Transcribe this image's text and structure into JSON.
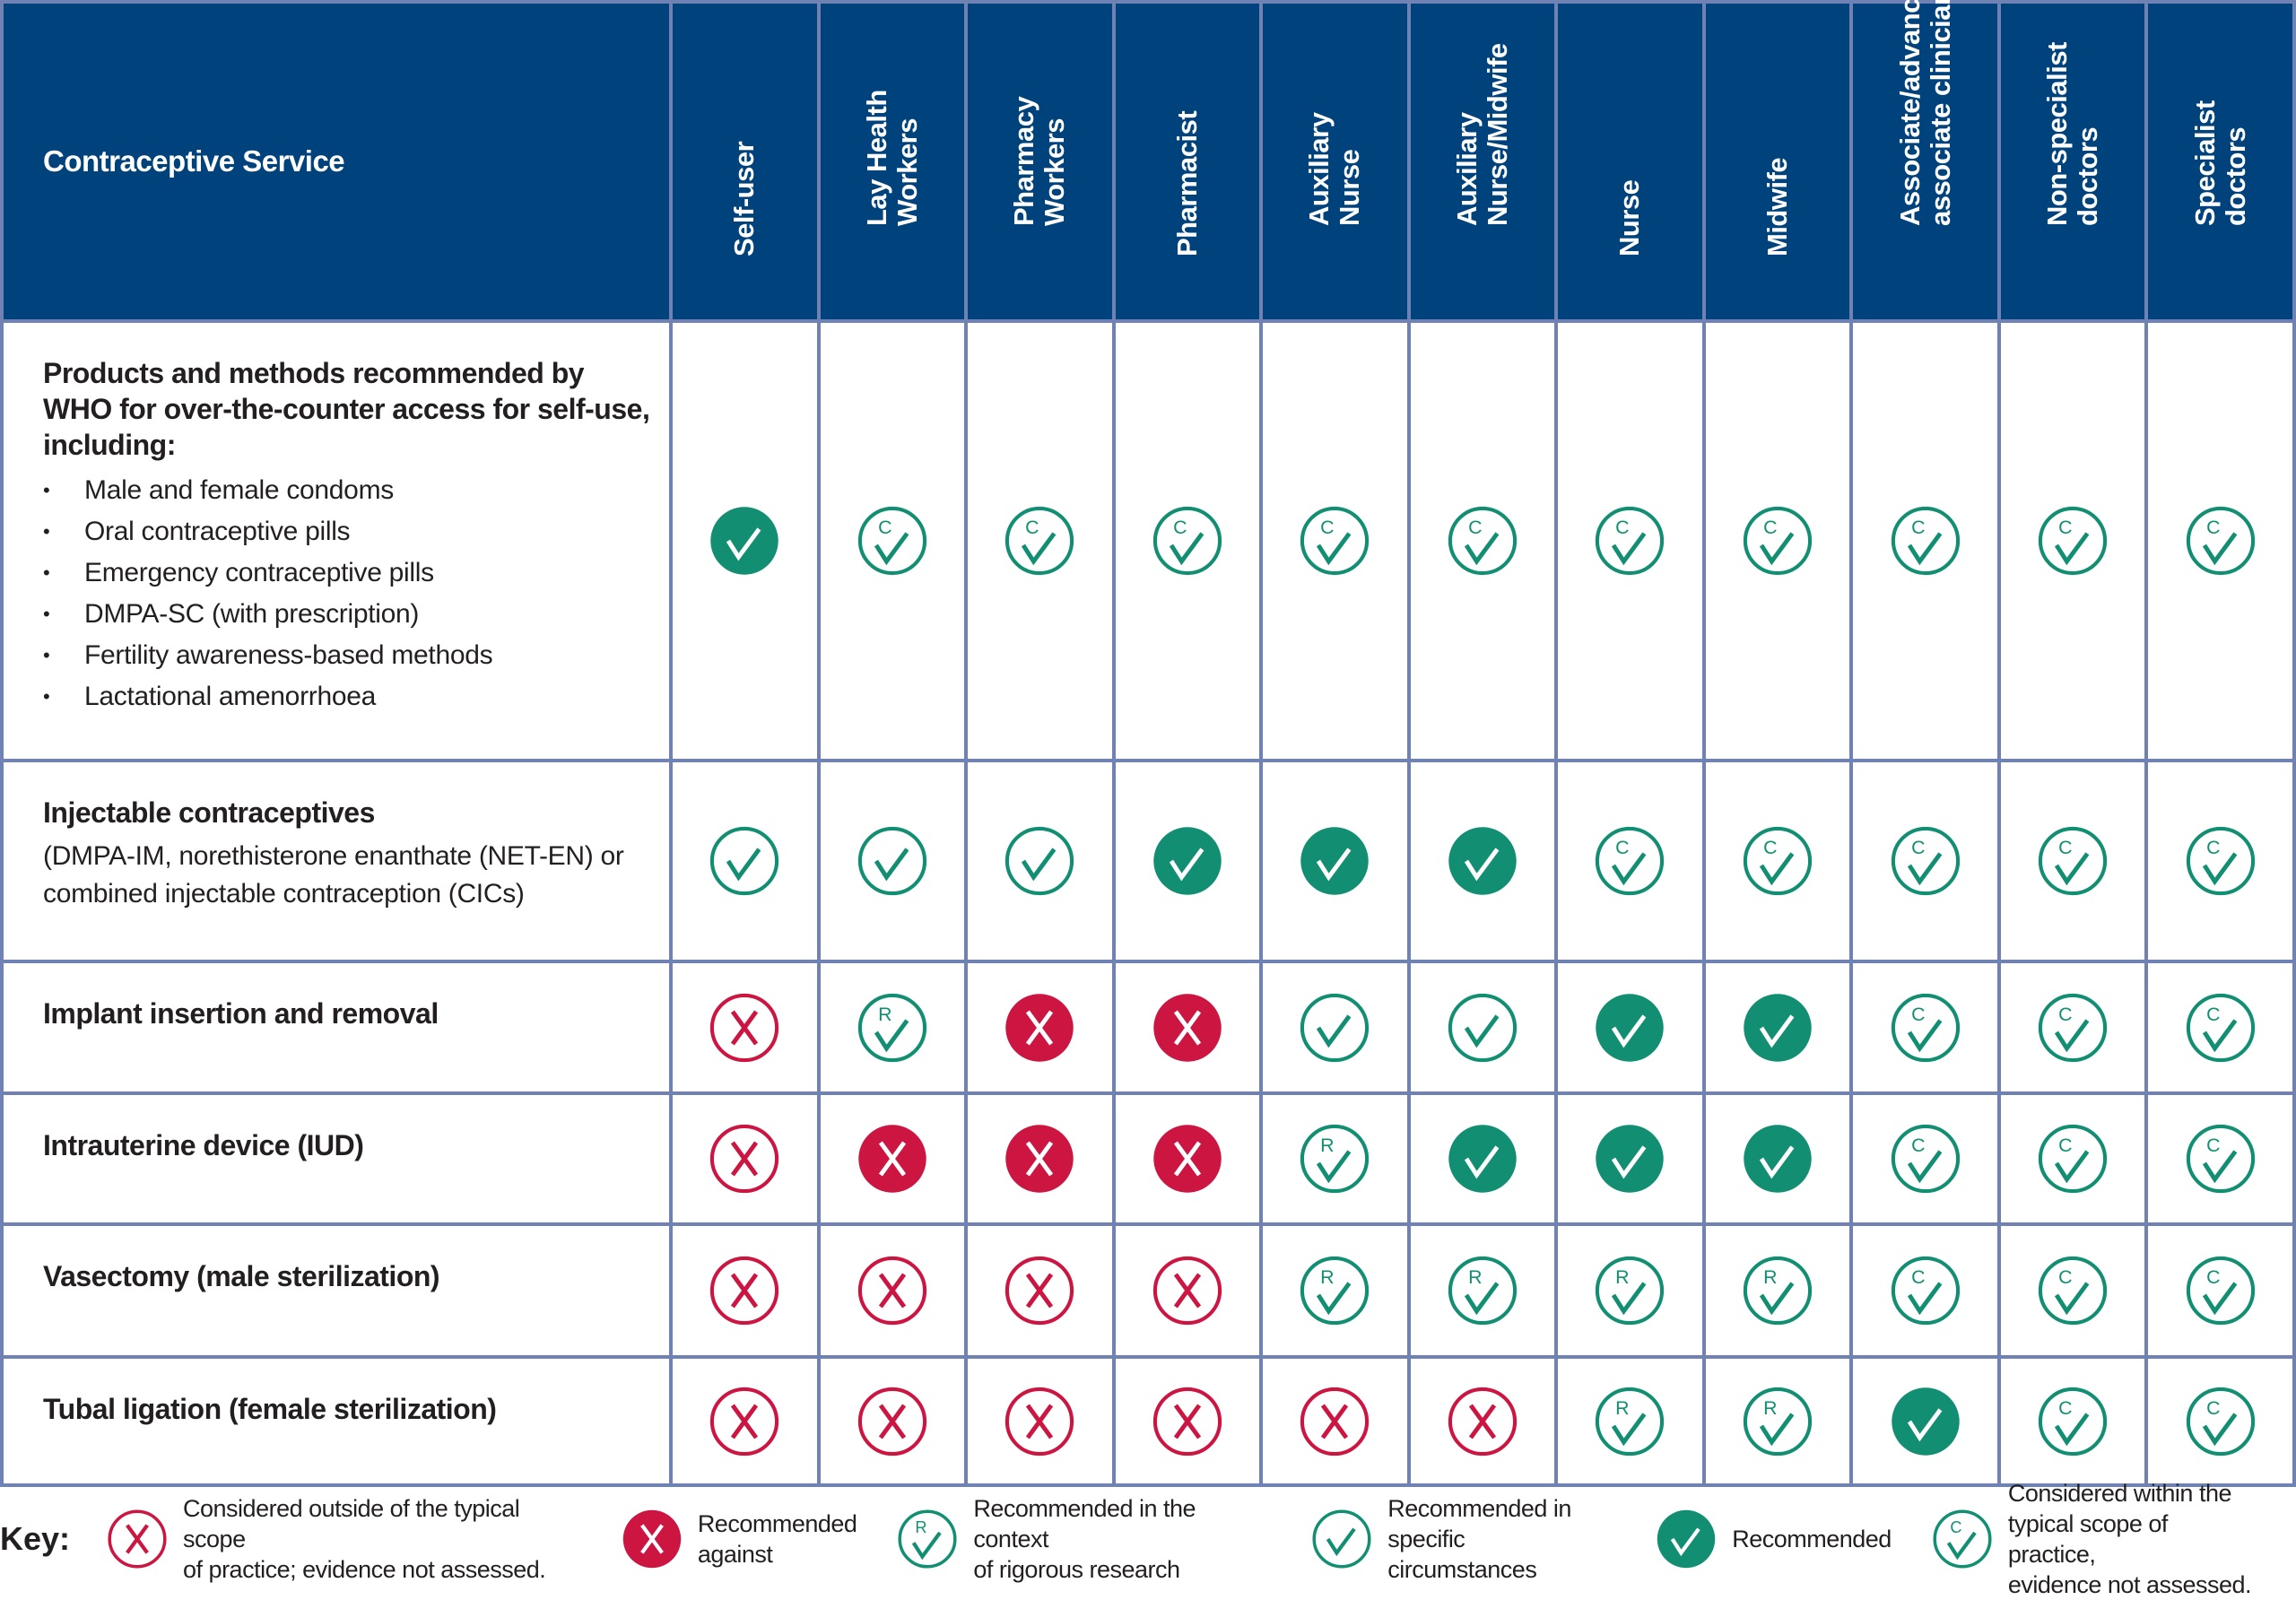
{
  "colors": {
    "header": "#00427c",
    "grid": "#6f82b3",
    "green": "#128f72",
    "red": "#cc1540"
  },
  "header": {
    "service": "Contraceptive Service",
    "columns": [
      [
        "Self-user"
      ],
      [
        "Lay Health",
        "Workers"
      ],
      [
        "Pharmacy",
        "Workers"
      ],
      [
        "Pharmacist"
      ],
      [
        "Auxiliary",
        "Nurse"
      ],
      [
        "Auxiliary",
        "Nurse/Midwife"
      ],
      [
        "Nurse"
      ],
      [
        "Midwife"
      ],
      [
        "Associate/advanced",
        "associate clinicians"
      ],
      [
        "Non-specialist",
        "doctors"
      ],
      [
        "Specialist",
        "doctors"
      ]
    ]
  },
  "rows": [
    {
      "title": "Products and methods recommended by WHO for over-the-counter access for self-use, including:",
      "desc": "",
      "bullets": [
        "Male and female condoms",
        "Oral contraceptive pills",
        "Emergency contraceptive pills",
        "DMPA-SC (with prescription)",
        "Fertility awareness-based methods",
        "Lactational amenorrhoea"
      ],
      "cells": [
        "recommended",
        "within-scope",
        "within-scope",
        "within-scope",
        "within-scope",
        "within-scope",
        "within-scope",
        "within-scope",
        "within-scope",
        "within-scope",
        "within-scope"
      ]
    },
    {
      "title": "Injectable contraceptives",
      "desc": "(DMPA-IM, norethisterone enanthate (NET-EN) or combined injectable contraception (CICs)",
      "bullets": [],
      "cells": [
        "specific-circumstances",
        "specific-circumstances",
        "specific-circumstances",
        "recommended",
        "recommended",
        "recommended",
        "within-scope",
        "within-scope",
        "within-scope",
        "within-scope",
        "within-scope"
      ]
    },
    {
      "title": "Implant insertion and removal",
      "desc": "",
      "bullets": [],
      "cells": [
        "outside-scope",
        "rigorous-research",
        "recommended-against",
        "recommended-against",
        "specific-circumstances",
        "specific-circumstances",
        "recommended",
        "recommended",
        "within-scope",
        "within-scope",
        "within-scope"
      ]
    },
    {
      "title": "Intrauterine device (IUD)",
      "desc": "",
      "bullets": [],
      "cells": [
        "outside-scope",
        "recommended-against",
        "recommended-against",
        "recommended-against",
        "rigorous-research",
        "recommended",
        "recommended",
        "recommended",
        "within-scope",
        "within-scope",
        "within-scope"
      ]
    },
    {
      "title": "Vasectomy (male sterilization)",
      "desc": "",
      "bullets": [],
      "cells": [
        "outside-scope",
        "outside-scope",
        "outside-scope",
        "outside-scope",
        "rigorous-research",
        "rigorous-research",
        "rigorous-research",
        "rigorous-research",
        "within-scope",
        "within-scope",
        "within-scope"
      ]
    },
    {
      "title": "Tubal ligation (female sterilization)",
      "desc": "",
      "bullets": [],
      "cells": [
        "outside-scope",
        "outside-scope",
        "outside-scope",
        "outside-scope",
        "outside-scope",
        "outside-scope",
        "rigorous-research",
        "rigorous-research",
        "recommended",
        "within-scope",
        "within-scope"
      ]
    }
  ],
  "key": {
    "label": "Key:",
    "items": [
      {
        "type": "outside-scope",
        "lines": [
          "Considered outside of the typical scope",
          "of practice; evidence not assessed."
        ]
      },
      {
        "type": "recommended-against",
        "lines": [
          "Recommended",
          "against"
        ]
      },
      {
        "type": "rigorous-research",
        "lines": [
          "Recommended in the context",
          "of rigorous research"
        ]
      },
      {
        "type": "specific-circumstances",
        "lines": [
          "Recommended in",
          "specific circumstances"
        ]
      },
      {
        "type": "recommended",
        "lines": [
          "Recommended"
        ]
      },
      {
        "type": "within-scope",
        "lines": [
          "Considered within the",
          "typical scope of practice,",
          "evidence not assessed."
        ]
      }
    ]
  }
}
